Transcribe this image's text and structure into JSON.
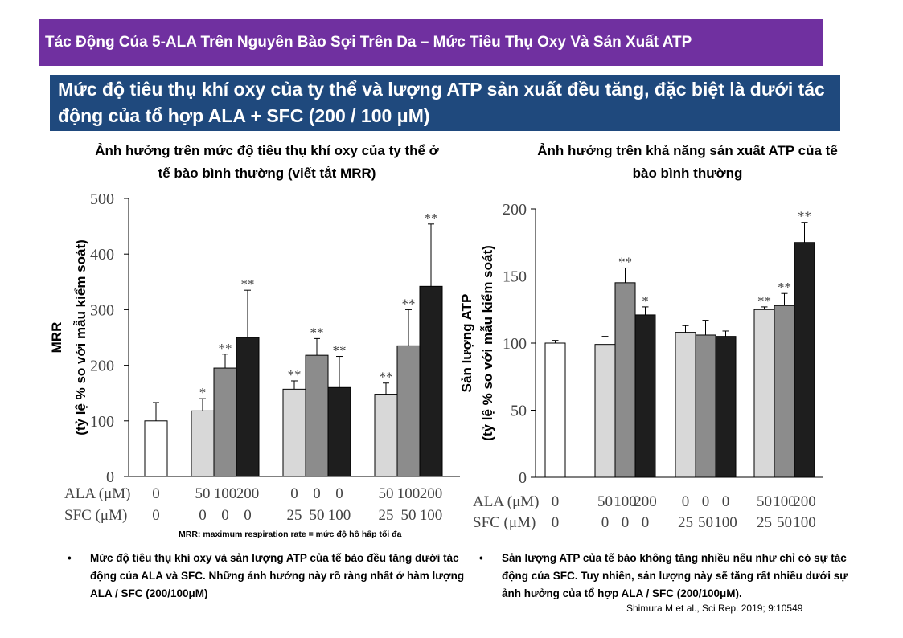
{
  "header": {
    "title": "Tác Động Của 5-ALA Trên Nguyên Bào Sợi Trên Da – Mức Tiêu Thụ Oxy Và Sản Xuất ATP",
    "subtitle": "Mức độ tiêu thụ khí oxy của ty thể và lượng ATP sản xuất đều tăng, đặc biệt là dưới tác động của tổ hợp ALA + SFC (200 / 100 μM)"
  },
  "left_chart_title_line1": "Ảnh hưởng trên mức độ tiêu thụ khí oxy của ty thể ở",
  "left_chart_title_line2": "tế bào bình thường (viết tắt MRR)",
  "right_chart_title_line1": "Ảnh hưởng trên khả năng sản xuất ATP của tế",
  "right_chart_title_line2": "bào bình thường",
  "footnote": "MRR: maximum respiration rate = mức độ hô hấp tối đa",
  "bullets": {
    "left": "Mức độ tiêu thụ khí oxy và sản lượng ATP của tế bào đều tăng dưới tác động của ALA và SFC. Những ảnh hưởng này rõ ràng nhất ở hàm lượng ALA / SFC (200/100μM)",
    "right": "Sản lượng ATP của tế bào không tăng nhiều nếu như chỉ có sự tác động của SFC. Tuy nhiên, sản lượng này sẽ tăng rất nhiều dưới sự ảnh hưởng của tổ hợp ALA / SFC (200/100μM)."
  },
  "bullet_symbol": "•",
  "citation": "Shimura M et al., Sci Rep. 2019; 9:10549",
  "colors": {
    "title_bg": "#7030a0",
    "subtitle_bg": "#1f497d",
    "bar_fills": [
      "#ffffff",
      "#d8d8d8",
      "#8c8c8c",
      "#1e1e1e"
    ]
  },
  "chart_data": [
    {
      "type": "bar",
      "ylabel_line1": "MRR",
      "ylabel_line2": "(tỷ lệ % so với mẫu kiểm soát)",
      "ylim": [
        0,
        500
      ],
      "yticks": [
        "0",
        "100",
        "200",
        "300",
        "400",
        "500"
      ],
      "row_labels": [
        "ALA (μM)",
        "SFC (μM)"
      ],
      "groups": [
        {
          "bars": [
            {
              "ala": "0",
              "sfc": "0",
              "value": 100,
              "err": 33,
              "sig": "",
              "shade": 0
            }
          ]
        },
        {
          "bars": [
            {
              "ala": "50",
              "sfc": "0",
              "value": 118,
              "err": 22,
              "sig": "*",
              "shade": 1
            },
            {
              "ala": "100",
              "sfc": "0",
              "value": 195,
              "err": 25,
              "sig": "**",
              "shade": 2
            },
            {
              "ala": "200",
              "sfc": "0",
              "value": 250,
              "err": 85,
              "sig": "**",
              "shade": 3
            }
          ]
        },
        {
          "bars": [
            {
              "ala": "0",
              "sfc": "25",
              "value": 157,
              "err": 15,
              "sig": "**",
              "shade": 1
            },
            {
              "ala": "0",
              "sfc": "50",
              "value": 218,
              "err": 30,
              "sig": "**",
              "shade": 2
            },
            {
              "ala": "0",
              "sfc": "100",
              "value": 160,
              "err": 56,
              "sig": "**",
              "shade": 3
            }
          ]
        },
        {
          "bars": [
            {
              "ala": "50",
              "sfc": "25",
              "value": 148,
              "err": 20,
              "sig": "**",
              "shade": 1
            },
            {
              "ala": "100",
              "sfc": "50",
              "value": 235,
              "err": 65,
              "sig": "**",
              "shade": 2
            },
            {
              "ala": "200",
              "sfc": "100",
              "value": 342,
              "err": 112,
              "sig": "**",
              "shade": 3
            }
          ]
        }
      ]
    },
    {
      "type": "bar",
      "ylabel_line1": "Sản lượng ATP",
      "ylabel_line2": "(tỷ lệ % so với mẫu kiểm soát)",
      "ylim": [
        0,
        200
      ],
      "yticks": [
        "0",
        "50",
        "100",
        "150",
        "200"
      ],
      "row_labels": [
        "ALA (μM)",
        "SFC (μM)"
      ],
      "groups": [
        {
          "bars": [
            {
              "ala": "0",
              "sfc": "0",
              "value": 100,
              "err": 2,
              "sig": "",
              "shade": 0
            }
          ]
        },
        {
          "bars": [
            {
              "ala": "50",
              "sfc": "0",
              "value": 99,
              "err": 6,
              "sig": "",
              "shade": 1
            },
            {
              "ala": "100",
              "sfc": "0",
              "value": 145,
              "err": 11,
              "sig": "**",
              "shade": 2
            },
            {
              "ala": "200",
              "sfc": "0",
              "value": 121,
              "err": 6,
              "sig": "*",
              "shade": 3
            }
          ]
        },
        {
          "bars": [
            {
              "ala": "0",
              "sfc": "25",
              "value": 108,
              "err": 5,
              "sig": "",
              "shade": 1
            },
            {
              "ala": "0",
              "sfc": "50",
              "value": 106,
              "err": 11,
              "sig": "",
              "shade": 2
            },
            {
              "ala": "0",
              "sfc": "100",
              "value": 105,
              "err": 4,
              "sig": "",
              "shade": 3
            }
          ]
        },
        {
          "bars": [
            {
              "ala": "50",
              "sfc": "25",
              "value": 125,
              "err": 2,
              "sig": "**",
              "shade": 1
            },
            {
              "ala": "100",
              "sfc": "50",
              "value": 128,
              "err": 9,
              "sig": "**",
              "shade": 2
            },
            {
              "ala": "200",
              "sfc": "100",
              "value": 175,
              "err": 15,
              "sig": "**",
              "shade": 3
            }
          ]
        }
      ]
    }
  ]
}
